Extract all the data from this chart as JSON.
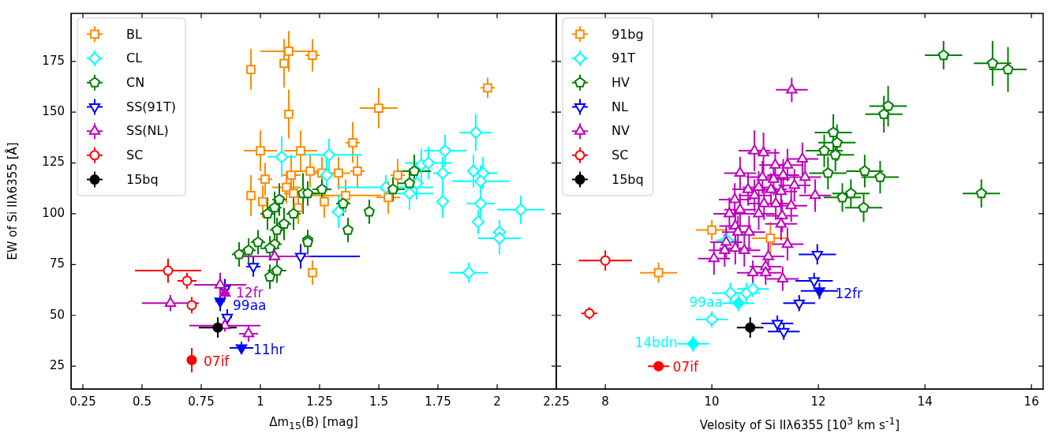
{
  "chart_data": [
    {
      "type": "scatter",
      "xlabel": "Δm$_{15}$(B) [mag]",
      "ylabel": "EW of Si IIλ6355 [Å]",
      "xlim": [
        0.2,
        2.25
      ],
      "ylim": [
        13.8,
        198.6
      ],
      "xticks": [
        0.25,
        0.5,
        0.75,
        1.0,
        1.25,
        1.5,
        1.75,
        2.0,
        2.25
      ],
      "yticks": [
        25,
        50,
        75,
        100,
        125,
        150,
        175
      ],
      "legend": "top left",
      "series": [
        {
          "name": "BL",
          "color": "#ff8c00",
          "marker": "square",
          "x": [
            0.96,
            1.12,
            1.1,
            1.22,
            1.12,
            1.0,
            1.17,
            1.96,
            1.5,
            1.39,
            1.21,
            1.02,
            0.96,
            1.01,
            1.13,
            1.11,
            1.14,
            1.16,
            1.22,
            1.27,
            1.33,
            1.41,
            1.36,
            1.58,
            1.54,
            1.26
          ],
          "values": [
            171,
            180,
            174,
            178,
            149,
            131,
            131,
            162,
            152,
            135,
            121,
            117,
            109,
            106,
            119,
            113,
            110,
            103,
            71,
            106,
            120,
            121,
            109,
            119,
            108,
            120
          ],
          "xerrors": [
            0.02,
            0.12,
            0.02,
            0.03,
            0.02,
            0.07,
            0.07,
            0.03,
            0.08,
            0.03,
            0.06,
            0.03,
            0.01,
            0.02,
            0.04,
            0.06,
            0.04,
            0.02,
            0.01,
            0.01,
            0.05,
            0.03,
            0.15,
            0.03,
            0.05,
            0.03
          ],
          "errors": [
            10,
            10,
            12,
            8,
            12,
            10,
            10,
            5,
            10,
            10,
            8,
            8,
            10,
            8,
            10,
            8,
            8,
            8,
            6,
            8,
            8,
            8,
            8,
            8,
            8,
            8
          ]
        },
        {
          "name": "CL",
          "color": "#00ffff",
          "marker": "diamond",
          "x": [
            1.09,
            1.29,
            1.28,
            1.33,
            1.53,
            1.63,
            1.66,
            1.68,
            1.71,
            1.78,
            1.77,
            1.77,
            1.91,
            1.9,
            1.94,
            1.93,
            1.93,
            1.92,
            2.1,
            2.01,
            2.01,
            1.88
          ],
          "values": [
            128,
            129,
            119,
            101,
            113,
            110,
            115,
            124,
            125,
            131,
            120,
            106,
            140,
            121,
            120,
            116,
            105,
            96,
            102,
            91,
            88,
            71
          ],
          "xerrors": [
            0.06,
            0.14,
            0.02,
            0.03,
            0.2,
            0.1,
            0.03,
            0.03,
            0.1,
            0.09,
            0.04,
            0.01,
            0.07,
            0.02,
            0.06,
            0.12,
            0.06,
            0.02,
            0.1,
            0.02,
            0.09,
            0.08
          ],
          "errors": [
            10,
            8,
            8,
            8,
            6,
            8,
            8,
            8,
            8,
            8,
            8,
            8,
            9,
            8,
            8,
            8,
            8,
            6,
            7,
            6,
            8,
            5
          ]
        },
        {
          "name": "CN",
          "color": "#008000",
          "x": [
            1.08,
            1.06,
            1.03,
            1.14,
            1.1,
            1.07,
            1.18,
            1.2,
            0.99,
            1.06,
            0.91,
            0.95,
            1.04,
            1.07,
            1.04,
            1.2,
            1.26,
            1.35,
            1.46,
            1.37,
            1.2,
            1.56,
            1.63,
            1.65
          ],
          "values": [
            107,
            103,
            100,
            100,
            95,
            92,
            110,
            87,
            86,
            85,
            80,
            82,
            83,
            72,
            69,
            110,
            112,
            105,
            101,
            92,
            86,
            112,
            115,
            121
          ],
          "xerrors": [
            0.03,
            0.03,
            0.03,
            0.03,
            0.03,
            0.03,
            0.06,
            0.02,
            0.03,
            0.03,
            0.03,
            0.03,
            0.04,
            0.04,
            0.02,
            0.05,
            0.04,
            0.03,
            0.02,
            0.01,
            0.01,
            0.05,
            0.05,
            0.07
          ],
          "errors": [
            8,
            8,
            8,
            8,
            8,
            6,
            10,
            5,
            6,
            6,
            6,
            6,
            6,
            6,
            6,
            6,
            5,
            6,
            6,
            6,
            6,
            6,
            7,
            8
          ]
        },
        {
          "name": "SS(91T)",
          "color": "#0000ff",
          "marker": "triangle_down",
          "x": [
            0.97,
            1.17,
            0.85,
            0.86
          ],
          "values": [
            74,
            79,
            63,
            49
          ],
          "xerrors": [
            0.03,
            0.25,
            0.02,
            0.02
          ],
          "errors": [
            5,
            6,
            5,
            4
          ]
        },
        {
          "color": "#0000ff",
          "marker": "triangle_down",
          "x": [
            0.83,
            0.92
          ],
          "values": [
            57,
            34
          ],
          "xerrors": [
            0.02,
            0.05
          ],
          "errors": [
            5,
            3
          ]
        },
        {
          "name": "SS(NL)",
          "color": "#bf00bf",
          "marker": "triangle",
          "x": [
            1.06,
            0.83,
            0.62,
            0.85,
            0.95
          ],
          "values": [
            79,
            65,
            56,
            45,
            41
          ],
          "xerrors": [
            0.15,
            0.11,
            0.12,
            0.15,
            0.04
          ],
          "errors": [
            2,
            6,
            4,
            3,
            4
          ]
        },
        {
          "color": "#bf00bf",
          "marker": "triangle",
          "x": [
            0.85
          ],
          "values": [
            61
          ],
          "xerrors": [
            0.02
          ],
          "errors": [
            3
          ]
        },
        {
          "name": "SC",
          "color": "#ff0000",
          "marker": "circle",
          "x": [
            0.61,
            0.69,
            0.71
          ],
          "values": [
            72,
            67,
            55
          ],
          "xerrors": [
            0.14,
            0.04,
            0.02
          ],
          "errors": [
            6,
            4,
            4
          ]
        },
        {
          "color": "#ff0000",
          "marker": "circle",
          "x": [
            0.71
          ],
          "values": [
            28
          ],
          "xerrors": [
            0.02
          ],
          "errors": [
            6
          ]
        },
        {
          "name": "15bq",
          "color": "#000000",
          "marker": "circle",
          "x": [
            0.82
          ],
          "values": [
            44
          ],
          "xerrors": [
            0.08
          ],
          "errors": [
            5
          ]
        }
      ],
      "annotations": [
        {
          "text": "12fr",
          "x": 0.85,
          "y": 61
        },
        {
          "text": "99aa",
          "x": 0.83,
          "y": 57
        },
        {
          "text": "11hr",
          "x": 0.92,
          "y": 34
        },
        {
          "text": "07if",
          "x": 0.71,
          "y": 28
        }
      ]
    },
    {
      "type": "scatter",
      "xlabel": "Velosity of Si IIλ6355 [10$^{3}$ km s$^{-1}$]",
      "xlim": [
        7.08,
        16.22
      ],
      "ylim": [
        13.8,
        198.6
      ],
      "xticks": [
        8,
        10,
        12,
        14,
        16
      ],
      "yticks": [
        25,
        50,
        75,
        100,
        125,
        150,
        175
      ],
      "tick_labels": "x",
      "legend": "top left",
      "series": [
        {
          "name": "91bg",
          "color": "#ff8c00",
          "marker": "square",
          "x": [
            10.0,
            9.0,
            11.1
          ],
          "values": [
            92,
            71,
            88
          ],
          "xerrors": [
            0.3,
            0.35,
            0.35
          ],
          "errors": [
            5,
            5,
            8
          ]
        },
        {
          "name": "91T",
          "color": "#00ffff",
          "marker": "diamond",
          "x": [
            10.35,
            10.65,
            10.77,
            10.0,
            10.28
          ],
          "values": [
            61,
            61,
            63,
            48,
            87
          ],
          "xerrors": [
            0.35,
            0.25,
            0.3,
            0.3,
            0.2
          ],
          "errors": [
            5,
            5,
            4,
            4,
            4
          ]
        },
        {
          "color": "#00ffff",
          "marker": "diamond",
          "x": [
            10.5,
            9.65
          ],
          "values": [
            56,
            36
          ],
          "xerrors": [
            0.3,
            0.3
          ],
          "errors": [
            4,
            4
          ]
        },
        {
          "name": "HV",
          "color": "#008000",
          "x": [
            14.35,
            15.27,
            15.56,
            13.31,
            13.23,
            12.28,
            12.35,
            12.11,
            12.32,
            12.18,
            12.87,
            13.16,
            12.45,
            12.61,
            12.85,
            15.06
          ],
          "values": [
            178,
            174,
            171,
            153,
            149,
            140,
            135,
            131,
            129,
            120,
            121,
            118,
            108,
            110,
            103,
            110
          ],
          "xerrors": [
            0.35,
            0.35,
            0.35,
            0.35,
            0.35,
            0.35,
            0.35,
            0.35,
            0.35,
            0.35,
            0.35,
            0.35,
            0.35,
            0.35,
            0.35,
            0.35
          ],
          "errors": [
            7,
            11,
            11,
            10,
            9,
            9,
            9,
            8,
            8,
            8,
            8,
            8,
            7,
            7,
            7,
            7
          ]
        },
        {
          "name": "NL",
          "color": "#0000ff",
          "marker": "triangle_down",
          "x": [
            11.98,
            11.92,
            11.64,
            11.23,
            11.35
          ],
          "values": [
            80,
            67,
            56,
            46,
            42
          ],
          "xerrors": [
            0.35,
            0.35,
            0.3,
            0.3,
            0.3
          ],
          "errors": [
            5,
            4,
            4,
            4,
            4
          ]
        },
        {
          "color": "#0000ff",
          "marker": "triangle_down",
          "x": [
            12.02
          ],
          "values": [
            62
          ],
          "xerrors": [
            0.35
          ],
          "errors": [
            4
          ]
        },
        {
          "name": "NV",
          "color": "#bf00bf",
          "marker": "triangle",
          "x": [
            11.5,
            10.8,
            10.97,
            11.19,
            11.42,
            11.7,
            10.53,
            10.95,
            11.16,
            11.34,
            11.75,
            10.68,
            10.88,
            11.11,
            11.3,
            11.55,
            10.43,
            10.8,
            10.98,
            11.2,
            11.49,
            10.33,
            10.53,
            10.88,
            11.32,
            11.3,
            10.44,
            10.7,
            10.49,
            10.27,
            11.42,
            10.24,
            10.44,
            10.61,
            10.04,
            11.06,
            11.01,
            10.77,
            11.01,
            11.33,
            11.94
          ],
          "values": [
            161,
            131,
            130,
            124,
            124,
            127,
            120,
            118,
            117,
            119,
            118,
            112,
            113,
            112,
            111,
            114,
            107,
            109,
            105,
            105,
            104,
            100,
            102,
            100,
            99,
            95,
            94,
            91,
            91,
            86,
            85,
            82,
            83,
            82,
            78,
            79,
            74,
            71,
            71,
            68,
            109
          ],
          "xerrors": [
            0.3,
            0.3,
            0.3,
            0.3,
            0.3,
            0.3,
            0.3,
            0.3,
            0.3,
            0.3,
            0.3,
            0.3,
            0.3,
            0.3,
            0.3,
            0.3,
            0.3,
            0.3,
            0.3,
            0.3,
            0.3,
            0.3,
            0.3,
            0.3,
            0.3,
            0.3,
            0.3,
            0.3,
            0.3,
            0.3,
            0.3,
            0.3,
            0.3,
            0.3,
            0.3,
            0.3,
            0.3,
            0.3,
            0.3,
            0.3,
            0.3
          ],
          "errors": [
            6,
            10,
            10,
            8,
            8,
            8,
            8,
            8,
            8,
            8,
            8,
            8,
            8,
            8,
            8,
            8,
            8,
            8,
            8,
            8,
            8,
            8,
            8,
            8,
            8,
            8,
            8,
            8,
            8,
            8,
            8,
            8,
            8,
            8,
            8,
            8,
            6,
            6,
            6,
            6,
            8
          ]
        },
        {
          "name": "SC",
          "color": "#ff0000",
          "marker": "circle",
          "x": [
            8.0,
            7.7
          ],
          "values": [
            77,
            51
          ],
          "xerrors": [
            0.5,
            0.15
          ],
          "errors": [
            5,
            3
          ]
        },
        {
          "color": "#ff0000",
          "marker": "circle",
          "x": [
            9.0
          ],
          "values": [
            25
          ],
          "xerrors": [
            0.2
          ],
          "errors": [
            2
          ]
        },
        {
          "name": "15bq",
          "color": "#000000",
          "marker": "circle",
          "x": [
            10.72
          ],
          "values": [
            44
          ],
          "xerrors": [
            0.25
          ],
          "errors": [
            5
          ]
        }
      ],
      "annotations": [
        {
          "text": "99aa",
          "x": 10.5,
          "y": 56
        },
        {
          "text": "14bdn",
          "x": 9.65,
          "y": 36
        },
        {
          "text": "07if",
          "x": 9.0,
          "y": 25
        },
        {
          "text": "12fr",
          "x": 12.02,
          "y": 62
        }
      ]
    }
  ]
}
